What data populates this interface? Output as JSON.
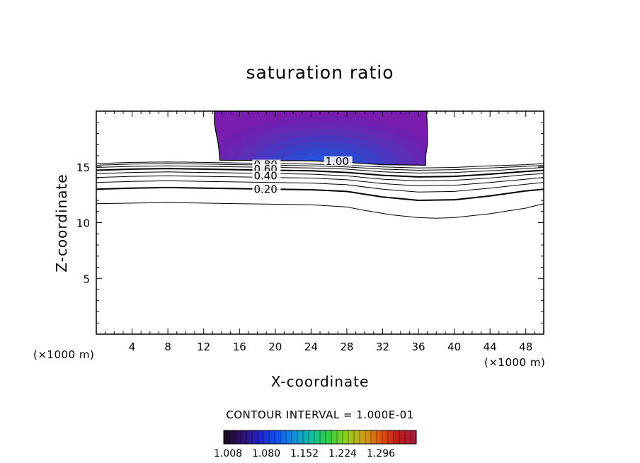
{
  "chart_data": {
    "type": "contour",
    "title": "saturation ratio",
    "xlabel": "X-coordinate",
    "ylabel": "Z-coordinate",
    "x_unit_left": "(×1000 m)",
    "x_unit_right": "(×1000 m)",
    "xlim": [
      0,
      50
    ],
    "ylim": [
      0,
      20
    ],
    "x_ticks": [
      4,
      8,
      12,
      16,
      20,
      24,
      28,
      32,
      36,
      40,
      44,
      48
    ],
    "y_ticks": [
      5,
      10,
      15
    ],
    "contour_interval_text": "CONTOUR INTERVAL = 1.000E-01",
    "contour_labels": [
      {
        "text": "0.80",
        "x": 17.6,
        "z": 15.2
      },
      {
        "text": "0.60",
        "x": 17.6,
        "z": 14.8
      },
      {
        "text": "0.40",
        "x": 17.6,
        "z": 14.2
      },
      {
        "text": "0.20",
        "x": 17.6,
        "z": 13.0
      },
      {
        "text": "1.00",
        "x": 25.6,
        "z": 15.5
      }
    ],
    "contour_levels": [
      {
        "level": 0.1,
        "heavy": false,
        "points": [
          [
            0,
            11.7
          ],
          [
            4,
            11.75
          ],
          [
            8,
            11.8
          ],
          [
            12,
            11.75
          ],
          [
            16,
            11.7
          ],
          [
            20,
            11.65
          ],
          [
            24,
            11.6
          ],
          [
            28,
            11.4
          ],
          [
            30,
            11.1
          ],
          [
            33,
            10.7
          ],
          [
            36,
            10.45
          ],
          [
            38,
            10.4
          ],
          [
            40,
            10.45
          ],
          [
            44,
            10.8
          ],
          [
            48,
            11.3
          ],
          [
            50,
            11.7
          ]
        ]
      },
      {
        "level": 0.2,
        "heavy": true,
        "points": [
          [
            0,
            13.0
          ],
          [
            4,
            13.1
          ],
          [
            8,
            13.15
          ],
          [
            12,
            13.1
          ],
          [
            16,
            13.05
          ],
          [
            20,
            13.0
          ],
          [
            24,
            12.95
          ],
          [
            28,
            12.8
          ],
          [
            32,
            12.3
          ],
          [
            36,
            12.0
          ],
          [
            40,
            12.05
          ],
          [
            44,
            12.4
          ],
          [
            48,
            12.85
          ],
          [
            50,
            13.0
          ]
        ]
      },
      {
        "level": 0.3,
        "heavy": false,
        "points": [
          [
            0,
            13.6
          ],
          [
            4,
            13.7
          ],
          [
            8,
            13.75
          ],
          [
            12,
            13.7
          ],
          [
            16,
            13.65
          ],
          [
            20,
            13.6
          ],
          [
            24,
            13.55
          ],
          [
            28,
            13.4
          ],
          [
            32,
            13.0
          ],
          [
            36,
            12.75
          ],
          [
            40,
            12.8
          ],
          [
            44,
            13.1
          ],
          [
            48,
            13.45
          ],
          [
            50,
            13.6
          ]
        ]
      },
      {
        "level": 0.4,
        "heavy": false,
        "points": [
          [
            0,
            14.05
          ],
          [
            4,
            14.15
          ],
          [
            8,
            14.2
          ],
          [
            12,
            14.15
          ],
          [
            16,
            14.1
          ],
          [
            20,
            14.05
          ],
          [
            24,
            14.0
          ],
          [
            28,
            13.85
          ],
          [
            32,
            13.5
          ],
          [
            36,
            13.3
          ],
          [
            40,
            13.35
          ],
          [
            44,
            13.6
          ],
          [
            48,
            13.9
          ],
          [
            50,
            14.05
          ]
        ]
      },
      {
        "level": 0.5,
        "heavy": false,
        "points": [
          [
            0,
            14.4
          ],
          [
            4,
            14.5
          ],
          [
            8,
            14.55
          ],
          [
            12,
            14.5
          ],
          [
            16,
            14.45
          ],
          [
            20,
            14.4
          ],
          [
            24,
            14.35
          ],
          [
            28,
            14.2
          ],
          [
            32,
            13.9
          ],
          [
            36,
            13.75
          ],
          [
            40,
            13.8
          ],
          [
            44,
            14.0
          ],
          [
            48,
            14.3
          ],
          [
            50,
            14.4
          ]
        ]
      },
      {
        "level": 0.6,
        "heavy": true,
        "points": [
          [
            0,
            14.7
          ],
          [
            4,
            14.8
          ],
          [
            8,
            14.85
          ],
          [
            12,
            14.8
          ],
          [
            16,
            14.75
          ],
          [
            20,
            14.7
          ],
          [
            24,
            14.65
          ],
          [
            28,
            14.5
          ],
          [
            32,
            14.25
          ],
          [
            36,
            14.1
          ],
          [
            40,
            14.15
          ],
          [
            44,
            14.35
          ],
          [
            48,
            14.6
          ],
          [
            50,
            14.7
          ]
        ]
      },
      {
        "level": 0.7,
        "heavy": false,
        "points": [
          [
            0,
            14.95
          ],
          [
            4,
            15.05
          ],
          [
            8,
            15.1
          ],
          [
            12,
            15.05
          ],
          [
            16,
            15.0
          ],
          [
            20,
            14.95
          ],
          [
            24,
            14.9
          ],
          [
            28,
            14.8
          ],
          [
            32,
            14.55
          ],
          [
            36,
            14.45
          ],
          [
            40,
            14.5
          ],
          [
            44,
            14.65
          ],
          [
            48,
            14.85
          ],
          [
            50,
            14.95
          ]
        ]
      },
      {
        "level": 0.8,
        "heavy": false,
        "points": [
          [
            0,
            15.15
          ],
          [
            4,
            15.25
          ],
          [
            8,
            15.3
          ],
          [
            12,
            15.25
          ],
          [
            16,
            15.2
          ],
          [
            20,
            15.15
          ],
          [
            24,
            15.1
          ],
          [
            28,
            15.0
          ],
          [
            32,
            14.8
          ],
          [
            36,
            14.7
          ],
          [
            40,
            14.75
          ],
          [
            44,
            14.9
          ],
          [
            48,
            15.05
          ],
          [
            50,
            15.15
          ]
        ]
      },
      {
        "level": 0.9,
        "heavy": false,
        "points": [
          [
            0,
            15.3
          ],
          [
            4,
            15.4
          ],
          [
            8,
            15.45
          ],
          [
            12,
            15.4
          ],
          [
            16,
            15.35
          ],
          [
            20,
            15.3
          ],
          [
            24,
            15.25
          ],
          [
            28,
            15.15
          ],
          [
            32,
            15.0
          ],
          [
            36,
            14.9
          ],
          [
            40,
            14.95
          ],
          [
            44,
            15.1
          ],
          [
            48,
            15.2
          ],
          [
            50,
            15.3
          ]
        ]
      }
    ],
    "shaded_region": {
      "boundary": [
        [
          13.2,
          20
        ],
        [
          13.2,
          18.9
        ],
        [
          13.4,
          18.0
        ],
        [
          13.6,
          17.2
        ],
        [
          13.7,
          16.6
        ],
        [
          13.8,
          15.6
        ],
        [
          24,
          15.55
        ],
        [
          28,
          15.4
        ],
        [
          32,
          15.2
        ],
        [
          36.8,
          15.15
        ],
        [
          36.8,
          16.0
        ],
        [
          37.0,
          17.0
        ],
        [
          37.0,
          18.5
        ],
        [
          36.9,
          20
        ]
      ],
      "center": [
        25.5,
        15.2
      ],
      "colors": [
        "#1430e8",
        "#2850e0",
        "#3048d0",
        "#3c40c8",
        "#4c38c0",
        "#5a30b8",
        "#6628b4",
        "#7020b0",
        "#7a1cae"
      ]
    },
    "colorbar": {
      "tick_labels": [
        "1.008",
        "1.080",
        "1.152",
        "1.224",
        "1.296"
      ],
      "colors": [
        "#180818",
        "#30106a",
        "#2020c8",
        "#1050f0",
        "#1090e0",
        "#10c0a0",
        "#30d040",
        "#90d020",
        "#d0a010",
        "#e05010",
        "#c01818",
        "#a02040"
      ]
    }
  }
}
